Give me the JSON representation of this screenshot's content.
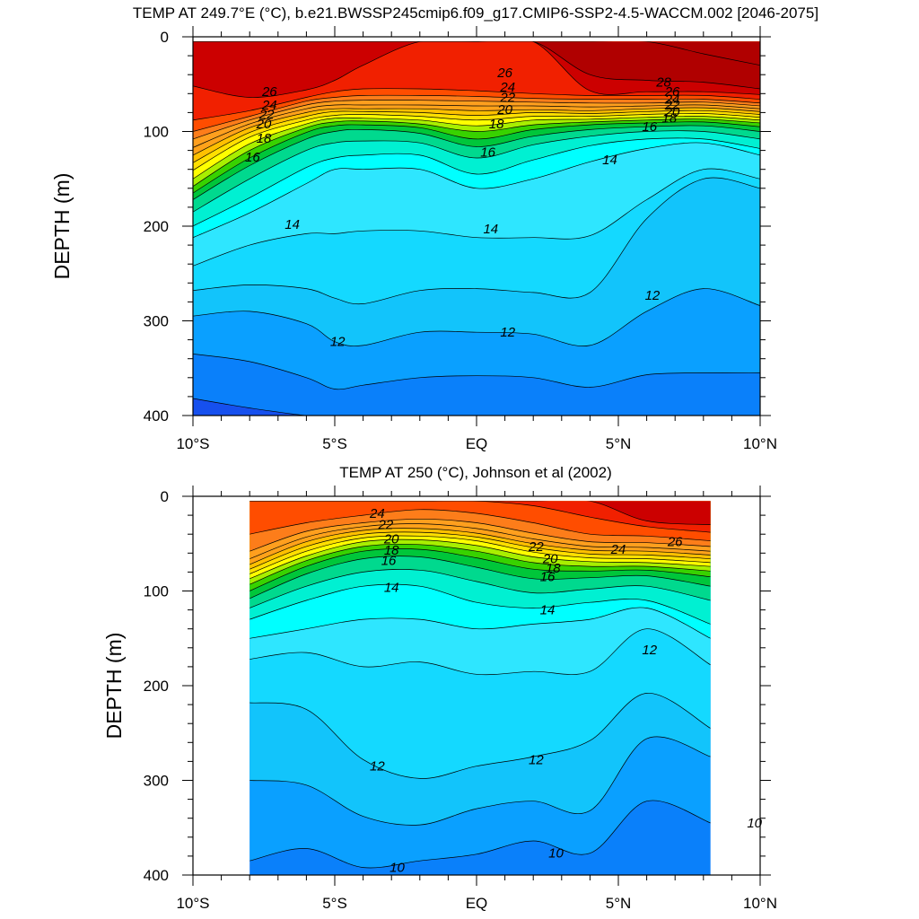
{
  "colors": {
    "palette": [
      "#1650ee",
      "#0a80fa",
      "#0aa0ff",
      "#12c4fb",
      "#14d9ff",
      "#2ee6ff",
      "#00ffff",
      "#00f0d2",
      "#00d98e",
      "#00c63a",
      "#38d200",
      "#a8ef00",
      "#ffff00",
      "#ffdf00",
      "#ffc000",
      "#ffa21a",
      "#ff9f1e",
      "#fd7d1a",
      "#ff4d00",
      "#f12000",
      "#cc0000",
      "#b00000"
    ]
  },
  "chart_data": [
    {
      "type": "contour",
      "title": "TEMP AT 249.7°E (°C), b.e21.BWSSP245cmip6.f09_g17.CMIP6-SSP2-4.5-WACCM.002 [2046-2075]",
      "ylabel": "DEPTH (m)",
      "xlabel": "",
      "xlim": [
        -10,
        10
      ],
      "ylim": [
        400,
        0
      ],
      "x_ticks": [
        -10,
        -5,
        0,
        5,
        10
      ],
      "x_tick_labels": [
        "10°S",
        "5°S",
        "EQ",
        "5°N",
        "10°N"
      ],
      "y_ticks": [
        0,
        100,
        200,
        300,
        400
      ],
      "y_tick_labels": [
        "0",
        "100",
        "200",
        "300",
        "400"
      ],
      "data_x_range": [
        -10,
        10
      ],
      "data_depth_range": [
        5,
        400
      ],
      "levels_degC": [
        10,
        11,
        12,
        12.5,
        13,
        13.5,
        14,
        15,
        16,
        17,
        18,
        19,
        20,
        21,
        22,
        23,
        24,
        25,
        26,
        27,
        28,
        29
      ],
      "isotherm_depths_m": {
        "x": [
          -10,
          -8,
          -6,
          -5,
          -4,
          -2,
          0,
          2,
          4,
          6,
          8,
          10
        ],
        "lines": [
          {
            "t": 10,
            "depth": [
              382,
              392,
              405,
              410,
              412,
              412,
              412,
              412,
              412,
              412,
              412,
              412
            ]
          },
          {
            "t": 11,
            "depth": [
              335,
              343,
              360,
              372,
              368,
              360,
              358,
              360,
              370,
              357,
              355,
              355
            ]
          },
          {
            "t": 12,
            "depth": [
              295,
              290,
              303,
              322,
              326,
              312,
              312,
              314,
              326,
              290,
              266,
              284
            ]
          },
          {
            "t": 12.5,
            "depth": [
              268,
              262,
              266,
              276,
              282,
              268,
              266,
              270,
              270,
              192,
              150,
              160
            ]
          },
          {
            "t": 13,
            "depth": [
              242,
              220,
              208,
              208,
              205,
              205,
              212,
              212,
              210,
              172,
              140,
              150
            ]
          },
          {
            "t": 13.5,
            "depth": [
              212,
              186,
              155,
              140,
              140,
              140,
              160,
              150,
              132,
              118,
              112,
              125
            ]
          },
          {
            "t": 14,
            "depth": [
              200,
              170,
              138,
              128,
              125,
              125,
              145,
              130,
              115,
              108,
              108,
              118
            ]
          },
          {
            "t": 15,
            "depth": [
              185,
              150,
              120,
              112,
              110,
              112,
              128,
              114,
              105,
              100,
              100,
              108
            ]
          },
          {
            "t": 16,
            "depth": [
              172,
              136,
              108,
              100,
              98,
              102,
              116,
              105,
              98,
              95,
              94,
              100
            ]
          },
          {
            "t": 17,
            "depth": [
              165,
              128,
              101,
              94,
              93,
              96,
              108,
              98,
              93,
              91,
              90,
              95
            ]
          },
          {
            "t": 18,
            "depth": [
              158,
              120,
              96,
              90,
              89,
              92,
              100,
              93,
              90,
              88,
              87,
              91
            ]
          },
          {
            "t": 19,
            "depth": [
              150,
              113,
              92,
              86,
              86,
              88,
              94,
              88,
              87,
              85,
              84,
              88
            ]
          },
          {
            "t": 20,
            "depth": [
              141,
              106,
              88,
              83,
              82,
              84,
              88,
              84,
              84,
              82,
              81,
              85
            ]
          },
          {
            "t": 21,
            "depth": [
              133,
              101,
              84,
              79,
              79,
              80,
              83,
              80,
              81,
              79,
              78,
              82
            ]
          },
          {
            "t": 22,
            "depth": [
              125,
              96,
              80,
              76,
              76,
              76,
              78,
              77,
              78,
              76,
              75,
              79
            ]
          },
          {
            "t": 23,
            "depth": [
              117,
              92,
              76,
              72,
              72,
              72,
              73,
              73,
              74,
              73,
              72,
              76
            ]
          },
          {
            "t": 24,
            "depth": [
              108,
              88,
              72,
              68,
              67,
              67,
              68,
              69,
              70,
              70,
              69,
              73
            ]
          },
          {
            "t": 25,
            "depth": [
              100,
              84,
              68,
              64,
              62,
              62,
              63,
              65,
              66,
              66,
              66,
              70
            ]
          },
          {
            "t": 26,
            "depth": [
              88,
              78,
              64,
              58,
              55,
              55,
              57,
              60,
              62,
              62,
              62,
              66
            ]
          },
          {
            "t": 27,
            "depth": [
              52,
              64,
              56,
              46,
              30,
              0,
              0,
              0,
              57,
              58,
              58,
              61
            ]
          },
          {
            "t": 28,
            "depth": [
              0,
              0,
              0,
              0,
              0,
              0,
              0,
              0,
              40,
              46,
              48,
              55
            ]
          },
          {
            "t": 29,
            "depth": [
              0,
              0,
              0,
              0,
              0,
              0,
              0,
              0,
              0,
              0,
              18,
              30
            ]
          }
        ]
      },
      "contour_labels": [
        {
          "text": "26",
          "x": -7.3,
          "depth": 58
        },
        {
          "text": "24",
          "x": -7.3,
          "depth": 72
        },
        {
          "text": "22",
          "x": -7.4,
          "depth": 82
        },
        {
          "text": "20",
          "x": -7.5,
          "depth": 92
        },
        {
          "text": "18",
          "x": -7.5,
          "depth": 107
        },
        {
          "text": "16",
          "x": -7.9,
          "depth": 127
        },
        {
          "text": "14",
          "x": -6.5,
          "depth": 198
        },
        {
          "text": "14",
          "x": 0.5,
          "depth": 203
        },
        {
          "text": "16",
          "x": 0.4,
          "depth": 122
        },
        {
          "text": "18",
          "x": 0.7,
          "depth": 92
        },
        {
          "text": "20",
          "x": 1.0,
          "depth": 77
        },
        {
          "text": "22",
          "x": 1.1,
          "depth": 64
        },
        {
          "text": "24",
          "x": 1.1,
          "depth": 53
        },
        {
          "text": "26",
          "x": 1.0,
          "depth": 38
        },
        {
          "text": "16",
          "x": 6.1,
          "depth": 95
        },
        {
          "text": "18",
          "x": 6.8,
          "depth": 86
        },
        {
          "text": "20",
          "x": 6.9,
          "depth": 79
        },
        {
          "text": "22",
          "x": 6.9,
          "depth": 72
        },
        {
          "text": "24",
          "x": 6.9,
          "depth": 66
        },
        {
          "text": "26",
          "x": 6.9,
          "depth": 58
        },
        {
          "text": "28",
          "x": 6.6,
          "depth": 48
        },
        {
          "text": "14",
          "x": 4.7,
          "depth": 130
        },
        {
          "text": "12",
          "x": 6.2,
          "depth": 273
        },
        {
          "text": "12",
          "x": -4.9,
          "depth": 322
        },
        {
          "text": "12",
          "x": 1.1,
          "depth": 312
        }
      ]
    },
    {
      "type": "contour",
      "title": "TEMP AT 250 (°C), Johnson et al (2002)",
      "ylabel": "DEPTH (m)",
      "xlabel": "",
      "xlim": [
        -10,
        10
      ],
      "ylim": [
        400,
        0
      ],
      "x_ticks": [
        -10,
        -5,
        0,
        5,
        10
      ],
      "x_tick_labels": [
        "10°S",
        "5°S",
        "EQ",
        "5°N",
        "10°N"
      ],
      "y_ticks": [
        0,
        100,
        200,
        300,
        400
      ],
      "y_tick_labels": [
        "0",
        "100",
        "200",
        "300",
        "400"
      ],
      "data_x_range": [
        -8,
        8.25
      ],
      "data_depth_range": [
        5,
        400
      ],
      "levels_degC": [
        9.5,
        10,
        11,
        12,
        12.5,
        13,
        13.5,
        14,
        15,
        16,
        17,
        18,
        19,
        20,
        21,
        22,
        23,
        24,
        25,
        26
      ],
      "isotherm_depths_m": {
        "x": [
          -8,
          -6,
          -4,
          -2,
          0,
          2,
          4,
          6,
          8.25
        ],
        "lines": [
          {
            "t": 9.5,
            "depth": [
              405,
              405,
              405,
              405,
              405,
              405,
              405,
              405,
              405
            ]
          },
          {
            "t": 10,
            "depth": [
              385,
              372,
              392,
              385,
              378,
              364,
              377,
              322,
              345
            ]
          },
          {
            "t": 11,
            "depth": [
              300,
              305,
              338,
              347,
              330,
              322,
              332,
              256,
              275
            ]
          },
          {
            "t": 12,
            "depth": [
              218,
              225,
              278,
              298,
              285,
              275,
              258,
              208,
              245
            ]
          },
          {
            "t": 12.5,
            "depth": [
              172,
              165,
              180,
              175,
              188,
              185,
              185,
              140,
              178
            ]
          },
          {
            "t": 13,
            "depth": [
              150,
              140,
              130,
              130,
              140,
              135,
              130,
              118,
              150
            ]
          },
          {
            "t": 13.5,
            "depth": [
              130,
              110,
              95,
              95,
              112,
              118,
              112,
              110,
              135
            ]
          },
          {
            "t": 14,
            "depth": [
              118,
              95,
              80,
              78,
              90,
              102,
              98,
              95,
              110
            ]
          },
          {
            "t": 15,
            "depth": [
              108,
              82,
              66,
              64,
              75,
              87,
              86,
              84,
              95
            ]
          },
          {
            "t": 16,
            "depth": [
              100,
              74,
              58,
              56,
              65,
              77,
              79,
              78,
              85
            ]
          },
          {
            "t": 17,
            "depth": [
              93,
              68,
              53,
              51,
              58,
              70,
              74,
              74,
              79
            ]
          },
          {
            "t": 18,
            "depth": [
              87,
              63,
              48,
              46,
              52,
              64,
              69,
              70,
              74
            ]
          },
          {
            "t": 19,
            "depth": [
              82,
              58,
              44,
              42,
              47,
              59,
              65,
              66,
              70
            ]
          },
          {
            "t": 20,
            "depth": [
              77,
              53,
              40,
              38,
              43,
              54,
              61,
              62,
              66
            ]
          },
          {
            "t": 21,
            "depth": [
              72,
              48,
              36,
              34,
              39,
              50,
              57,
              58,
              62
            ]
          },
          {
            "t": 22,
            "depth": [
              66,
              43,
              32,
              29,
              34,
              45,
              53,
              54,
              58
            ]
          },
          {
            "t": 23,
            "depth": [
              58,
              37,
              28,
              24,
              28,
              39,
              48,
              49,
              53
            ]
          },
          {
            "t": 24,
            "depth": [
              40,
              28,
              20,
              14,
              18,
              28,
              40,
              42,
              47
            ]
          },
          {
            "t": 25,
            "depth": [
              0,
              0,
              0,
              0,
              0,
              10,
              22,
              32,
              38
            ]
          },
          {
            "t": 26,
            "depth": [
              0,
              0,
              0,
              0,
              0,
              0,
              0,
              26,
              30
            ]
          }
        ]
      },
      "contour_labels": [
        {
          "text": "24",
          "x": -3.5,
          "depth": 18
        },
        {
          "text": "22",
          "x": -3.2,
          "depth": 30
        },
        {
          "text": "20",
          "x": -3.0,
          "depth": 45
        },
        {
          "text": "18",
          "x": -3.0,
          "depth": 57
        },
        {
          "text": "16",
          "x": -3.1,
          "depth": 68
        },
        {
          "text": "14",
          "x": -3.0,
          "depth": 96
        },
        {
          "text": "22",
          "x": 2.1,
          "depth": 53
        },
        {
          "text": "20",
          "x": 2.6,
          "depth": 66
        },
        {
          "text": "18",
          "x": 2.7,
          "depth": 76
        },
        {
          "text": "16",
          "x": 2.5,
          "depth": 85
        },
        {
          "text": "14",
          "x": 2.5,
          "depth": 120
        },
        {
          "text": "24",
          "x": 5.0,
          "depth": 56
        },
        {
          "text": "26",
          "x": 7.0,
          "depth": 48
        },
        {
          "text": "12",
          "x": 6.1,
          "depth": 162
        },
        {
          "text": "12",
          "x": -3.5,
          "depth": 285
        },
        {
          "text": "12",
          "x": 2.1,
          "depth": 278
        },
        {
          "text": "10",
          "x": -2.8,
          "depth": 392
        },
        {
          "text": "10",
          "x": 2.8,
          "depth": 377
        },
        {
          "text": "10",
          "x": 9.8,
          "depth": 345
        }
      ]
    }
  ]
}
